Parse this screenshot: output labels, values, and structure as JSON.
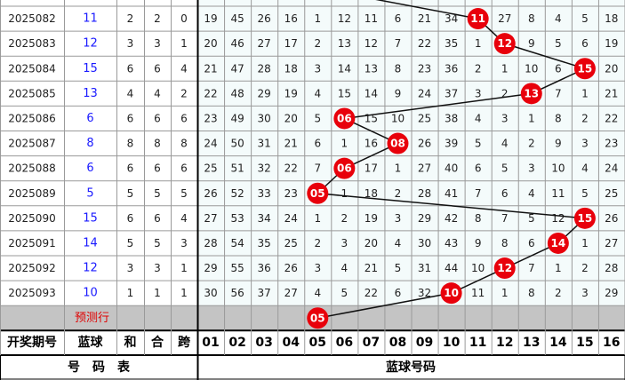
{
  "table": {
    "rows": [
      {
        "issue": "2025082",
        "blue": "11",
        "sum": "2",
        "he": "2",
        "span": "0",
        "cells": [
          "19",
          "45",
          "26",
          "16",
          "1",
          "12",
          "11",
          "6",
          "21",
          "34",
          "11",
          "27",
          "8",
          "4",
          "5",
          "18"
        ]
      },
      {
        "issue": "2025083",
        "blue": "12",
        "sum": "3",
        "he": "3",
        "span": "1",
        "cells": [
          "20",
          "46",
          "27",
          "17",
          "2",
          "13",
          "12",
          "7",
          "22",
          "35",
          "1",
          "12",
          "9",
          "5",
          "6",
          "19"
        ]
      },
      {
        "issue": "2025084",
        "blue": "15",
        "sum": "6",
        "he": "6",
        "span": "4",
        "cells": [
          "21",
          "47",
          "28",
          "18",
          "3",
          "14",
          "13",
          "8",
          "23",
          "36",
          "2",
          "1",
          "10",
          "6",
          "15",
          "20"
        ]
      },
      {
        "issue": "2025085",
        "blue": "13",
        "sum": "4",
        "he": "4",
        "span": "2",
        "cells": [
          "22",
          "48",
          "29",
          "19",
          "4",
          "15",
          "14",
          "9",
          "24",
          "37",
          "3",
          "2",
          "13",
          "7",
          "1",
          "21"
        ]
      },
      {
        "issue": "2025086",
        "blue": "6",
        "sum": "6",
        "he": "6",
        "span": "6",
        "cells": [
          "23",
          "49",
          "30",
          "20",
          "5",
          "06",
          "15",
          "10",
          "25",
          "38",
          "4",
          "3",
          "1",
          "8",
          "2",
          "22"
        ]
      },
      {
        "issue": "2025087",
        "blue": "8",
        "sum": "8",
        "he": "8",
        "span": "8",
        "cells": [
          "24",
          "50",
          "31",
          "21",
          "6",
          "1",
          "16",
          "08",
          "26",
          "39",
          "5",
          "4",
          "2",
          "9",
          "3",
          "23"
        ]
      },
      {
        "issue": "2025088",
        "blue": "6",
        "sum": "6",
        "he": "6",
        "span": "6",
        "cells": [
          "25",
          "51",
          "32",
          "22",
          "7",
          "06",
          "17",
          "1",
          "27",
          "40",
          "6",
          "5",
          "3",
          "10",
          "4",
          "24"
        ]
      },
      {
        "issue": "2025089",
        "blue": "5",
        "sum": "5",
        "he": "5",
        "span": "5",
        "cells": [
          "26",
          "52",
          "33",
          "23",
          "05",
          "1",
          "18",
          "2",
          "28",
          "41",
          "7",
          "6",
          "4",
          "11",
          "5",
          "25"
        ]
      },
      {
        "issue": "2025090",
        "blue": "15",
        "sum": "6",
        "he": "6",
        "span": "4",
        "cells": [
          "27",
          "53",
          "34",
          "24",
          "1",
          "2",
          "19",
          "3",
          "29",
          "42",
          "8",
          "7",
          "5",
          "12",
          "15",
          "26"
        ]
      },
      {
        "issue": "2025091",
        "blue": "14",
        "sum": "5",
        "he": "5",
        "span": "3",
        "cells": [
          "28",
          "54",
          "35",
          "25",
          "2",
          "3",
          "20",
          "4",
          "30",
          "43",
          "9",
          "8",
          "6",
          "14",
          "1",
          "27"
        ]
      },
      {
        "issue": "2025092",
        "blue": "12",
        "sum": "3",
        "he": "3",
        "span": "1",
        "cells": [
          "29",
          "55",
          "36",
          "26",
          "3",
          "4",
          "21",
          "5",
          "31",
          "44",
          "10",
          "12",
          "7",
          "1",
          "2",
          "28"
        ]
      },
      {
        "issue": "2025093",
        "blue": "10",
        "sum": "1",
        "he": "1",
        "span": "1",
        "cells": [
          "30",
          "56",
          "37",
          "27",
          "4",
          "5",
          "22",
          "6",
          "32",
          "10",
          "11",
          "1",
          "8",
          "2",
          "3",
          "29"
        ]
      }
    ],
    "prediction": {
      "label": "预测行",
      "ball": "05"
    },
    "header": [
      "开奖期号",
      "蓝球",
      "和",
      "合",
      "跨",
      "01",
      "02",
      "03",
      "04",
      "05",
      "06",
      "07",
      "08",
      "09",
      "10",
      "11",
      "12",
      "13",
      "14",
      "15",
      "16"
    ],
    "footer": {
      "left": "号　码　表",
      "right": "蓝球号码"
    }
  }
}
